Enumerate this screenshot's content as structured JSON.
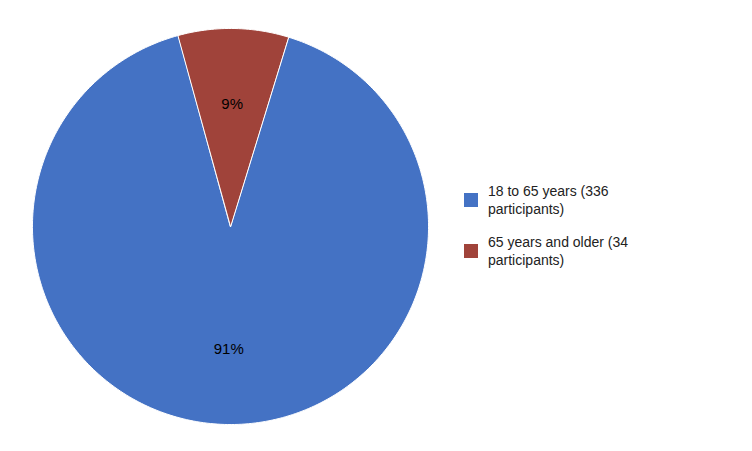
{
  "chart_data": {
    "type": "pie",
    "categories": [
      "18 to 65 years (336\nparticipants)",
      "65 years and older (34\nparticipants)"
    ],
    "values": [
      91,
      9
    ],
    "value_labels": [
      "91%",
      "9%"
    ],
    "colors": [
      "#4472C4",
      "#A0433A"
    ],
    "data_labels": true,
    "legend": "right"
  }
}
